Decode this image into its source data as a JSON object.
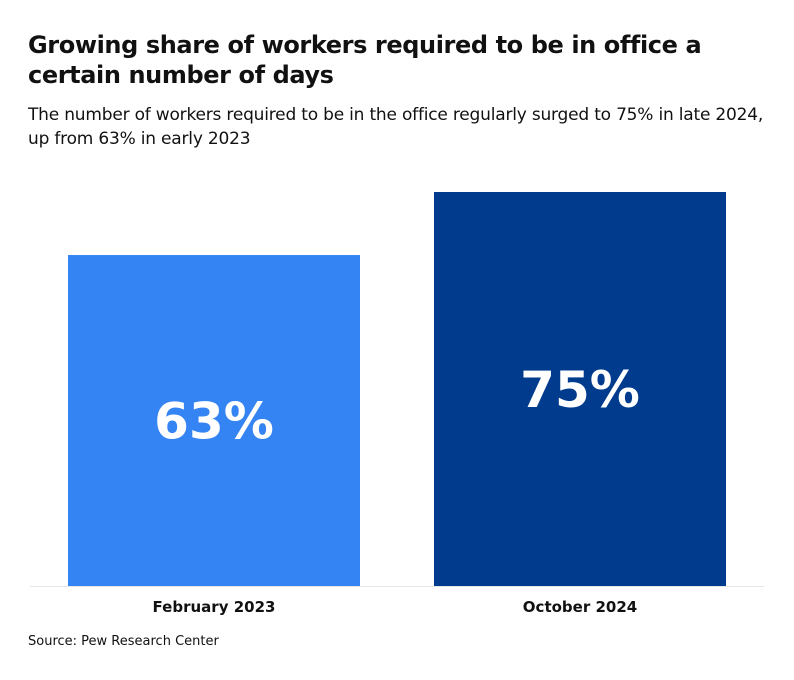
{
  "header": {
    "title": "Growing share of workers required to be in office a certain number of days",
    "subtitle": "The number of workers required to be in the office regularly surged to 75% in late 2024, up from 63% in early 2023"
  },
  "footer": {
    "source": "Source: Pew Research Center"
  },
  "colors": {
    "bar_1": "#3584f4",
    "bar_2": "#003b8e",
    "baseline": "#e6e6e6"
  },
  "chart_data": {
    "type": "bar",
    "categories": [
      "February 2023",
      "October 2024"
    ],
    "values": [
      63,
      75
    ],
    "value_labels": [
      "63%",
      "75%"
    ],
    "title": "Growing share of workers required to be in office a certain number of days",
    "subtitle": "The number of workers required to be in the office regularly surged to 75% in late 2024, up from 63% in early 2023",
    "xlabel": "",
    "ylabel": "",
    "ylim": [
      0,
      75
    ],
    "grid": false,
    "legend": "none"
  }
}
